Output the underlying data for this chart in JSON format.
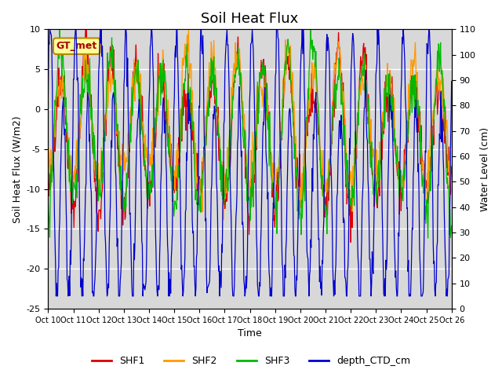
{
  "title": "Soil Heat Flux",
  "xlabel": "Time",
  "ylabel_left": "Soil Heat Flux (W/m2)",
  "ylabel_right": "Water Level (cm)",
  "ylim_left": [
    -25,
    10
  ],
  "ylim_right": [
    0,
    110
  ],
  "yticks_left": [
    -25,
    -20,
    -15,
    -10,
    -5,
    0,
    5,
    10
  ],
  "yticks_right": [
    0,
    10,
    20,
    30,
    40,
    50,
    60,
    70,
    80,
    90,
    100,
    110
  ],
  "xtick_labels": [
    "Oct 10",
    "Oct 11",
    "Oct 12",
    "Oct 13",
    "Oct 14",
    "Oct 15",
    "Oct 16",
    "Oct 17",
    "Oct 18",
    "Oct 19",
    "Oct 20",
    "Oct 21",
    "Oct 22",
    "Oct 23",
    "Oct 24",
    "Oct 25",
    "Oct 26"
  ],
  "colors": {
    "SHF1": "#dd0000",
    "SHF2": "#ff9900",
    "SHF3": "#00bb00",
    "depth_CTD_cm": "#0000cc"
  },
  "legend_labels": [
    "SHF1",
    "SHF2",
    "SHF3",
    "depth_CTD_cm"
  ],
  "annotation_text": "GT_met",
  "annotation_box_color": "#ffff99",
  "annotation_text_color": "#aa0000",
  "annotation_border_color": "#bb8800",
  "background_color": "#d8d8d8",
  "grid_color": "white",
  "title_fontsize": 13,
  "label_fontsize": 9,
  "tick_fontsize": 8
}
